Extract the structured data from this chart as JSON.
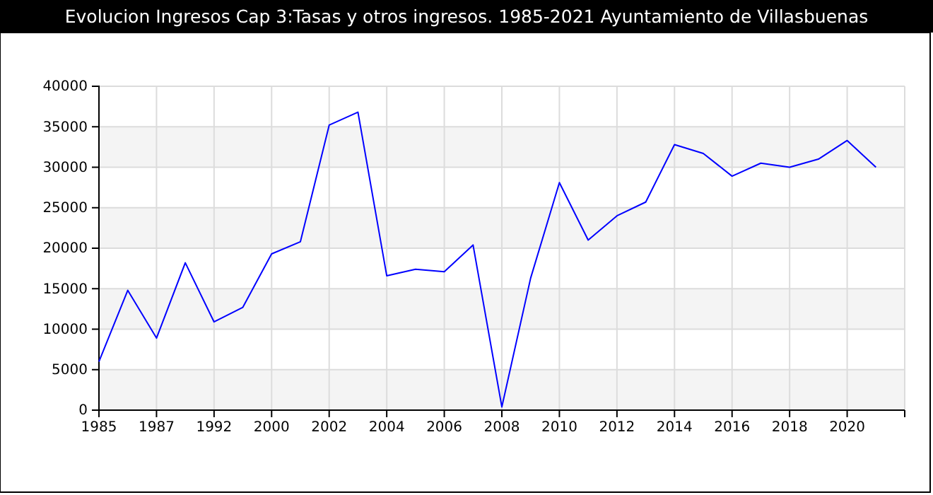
{
  "chart_data": {
    "type": "line",
    "title": "Evolucion Ingresos Cap 3:Tasas y otros ingresos. 1985-2021 Ayuntamiento de Villasbuenas",
    "categories": [
      "1985",
      null,
      "1987",
      null,
      "1992",
      null,
      "2000",
      null,
      "2002",
      null,
      "2004",
      null,
      "2006",
      null,
      "2008",
      null,
      "2010",
      null,
      "2012",
      null,
      "2014",
      null,
      "2016",
      null,
      "2018",
      null,
      "2020",
      null
    ],
    "series": [
      {
        "color": "#0000ff",
        "values": [
          6000,
          14800,
          8900,
          18200,
          10900,
          12700,
          19300,
          20800,
          35200,
          36800,
          16600,
          17400,
          17100,
          20400,
          400,
          16300,
          28100,
          21000,
          24000,
          25700,
          32800,
          31700,
          28900,
          30500,
          30000,
          31000,
          33300,
          30000
        ]
      }
    ],
    "ylim": [
      0,
      40000
    ],
    "yticks": [
      0,
      5000,
      10000,
      15000,
      20000,
      25000,
      30000,
      35000,
      40000
    ],
    "grid": true,
    "marker": "none",
    "line_style": "solid"
  }
}
